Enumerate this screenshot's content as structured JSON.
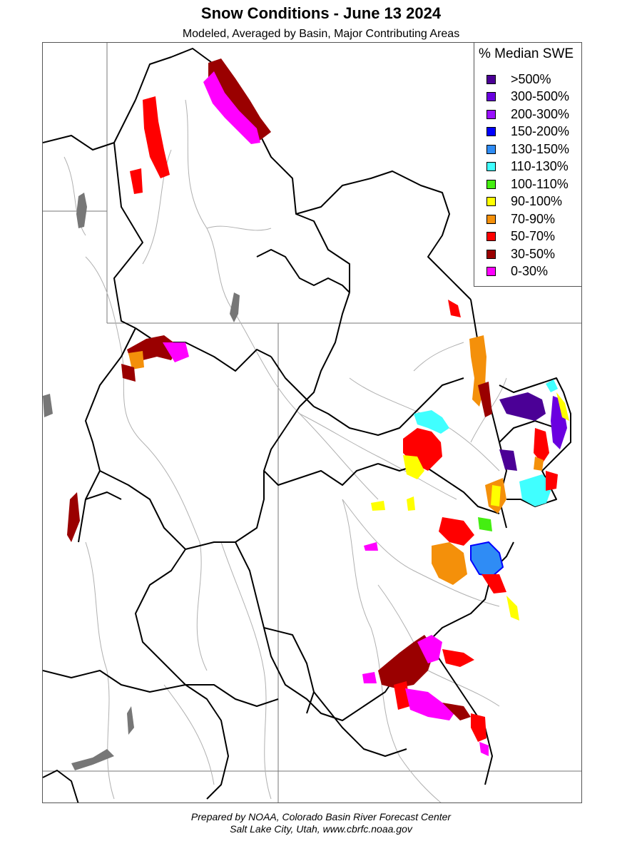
{
  "header": {
    "title": "Snow Conditions - June 13 2024",
    "subtitle": "Modeled, Averaged by Basin, Major Contributing Areas"
  },
  "legend": {
    "title": "% Median SWE",
    "items": [
      {
        "label": ">500%",
        "color": "#4b0096"
      },
      {
        "label": "300-500%",
        "color": "#6a00e0"
      },
      {
        "label": "200-300%",
        "color": "#9a10ff"
      },
      {
        "label": "150-200%",
        "color": "#0000ff"
      },
      {
        "label": "130-150%",
        "color": "#2f8cf5"
      },
      {
        "label": "110-130%",
        "color": "#40ffff"
      },
      {
        "label": "100-110%",
        "color": "#44ee11"
      },
      {
        "label": "90-100%",
        "color": "#ffff00"
      },
      {
        "label": "70-90%",
        "color": "#f4900a"
      },
      {
        "label": "50-70%",
        "color": "#ff0000"
      },
      {
        "label": "30-50%",
        "color": "#9a0000"
      },
      {
        "label": "0-30%",
        "color": "#ff00ff"
      }
    ]
  },
  "credits": {
    "line1": "Prepared by NOAA, Colorado Basin River Forecast Center",
    "line2": "Salt Lake City, Utah, www.cbrfc.noaa.gov"
  }
}
